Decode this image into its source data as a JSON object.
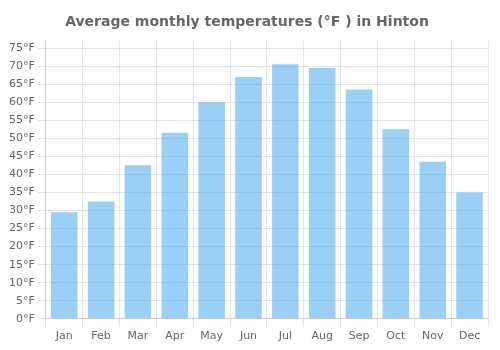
{
  "chart_data": {
    "type": "bar",
    "title": "Average monthly temperatures (°F ) in Hinton",
    "categories": [
      "Jan",
      "Feb",
      "Mar",
      "Apr",
      "May",
      "Jun",
      "Jul",
      "Aug",
      "Sep",
      "Oct",
      "Nov",
      "Dec"
    ],
    "values": [
      29.5,
      32.5,
      42.5,
      51.5,
      60.0,
      67.0,
      70.5,
      69.5,
      63.5,
      52.5,
      43.5,
      35.0
    ],
    "ylim": [
      0,
      77
    ],
    "yticks": [
      {
        "value": 0,
        "label": "0°F"
      },
      {
        "value": 5,
        "label": "5°F"
      },
      {
        "value": 10,
        "label": "10°F"
      },
      {
        "value": 15,
        "label": "15°F"
      },
      {
        "value": 20,
        "label": "20°F"
      },
      {
        "value": 25,
        "label": "25°F"
      },
      {
        "value": 30,
        "label": "30°F"
      },
      {
        "value": 35,
        "label": "35°F"
      },
      {
        "value": 40,
        "label": "40°F"
      },
      {
        "value": 45,
        "label": "45°F"
      },
      {
        "value": 50,
        "label": "50°F"
      },
      {
        "value": 55,
        "label": "55°F"
      },
      {
        "value": 60,
        "label": "60°F"
      },
      {
        "value": 65,
        "label": "65°F"
      },
      {
        "value": 70,
        "label": "70°F"
      },
      {
        "value": 75,
        "label": "75°F"
      }
    ],
    "grid": true
  }
}
